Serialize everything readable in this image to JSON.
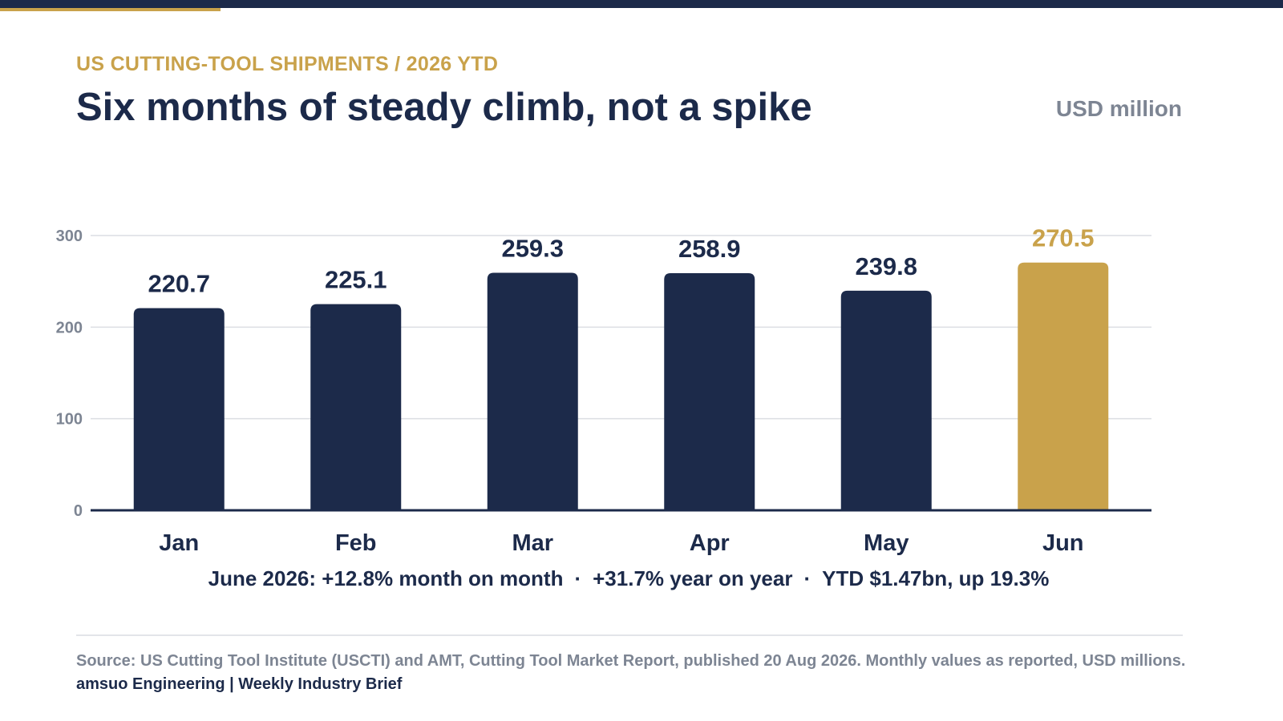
{
  "header": {
    "kicker": "US CUTTING-TOOL SHIPMENTS  /  2026 YTD",
    "title": "Six months of steady climb, not a spike",
    "unit": "USD million"
  },
  "summary": {
    "items": [
      "June 2026: +12.8% month on month",
      "+31.7% year on year",
      "YTD $1.47bn, up 19.3%"
    ],
    "separator": "·"
  },
  "footer": {
    "source": "Source: US Cutting Tool Institute (USCTI) and AMT, Cutting Tool Market Report, published 20 Aug 2026. Monthly values as reported, USD millions.",
    "brand": "amsuo Engineering | Weekly Industry Brief"
  },
  "colors": {
    "navy": "#1c2a4a",
    "gold": "#c9a24b",
    "muted": "#7d8593",
    "grid": "#dcdee3"
  },
  "chart_data": {
    "type": "bar",
    "categories": [
      "Jan",
      "Feb",
      "Mar",
      "Apr",
      "May",
      "Jun"
    ],
    "values": [
      220.7,
      225.1,
      259.3,
      258.9,
      239.8,
      270.5
    ],
    "value_labels": [
      "220.7",
      "225.1",
      "259.3",
      "258.9",
      "239.8",
      "270.5"
    ],
    "highlight": "Jun",
    "ylim": [
      0,
      300
    ],
    "yticks": [
      0,
      100,
      200,
      300
    ],
    "grid": true,
    "legend": "none"
  }
}
